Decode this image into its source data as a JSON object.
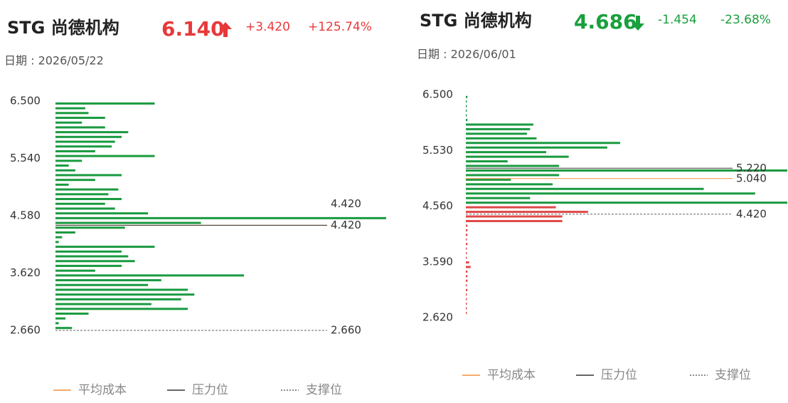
{
  "chart_data": [
    {
      "type": "bar",
      "orientation": "horizontal",
      "title": "STG 尚德机构",
      "price": "6.140",
      "direction": "up",
      "change": "+3.420",
      "change_pct": "+125.74%",
      "price_color": "#e8393a",
      "change_color": "#e8393a",
      "date": "日期 : 2026/05/22",
      "ylim": [
        2.66,
        6.5
      ],
      "yticks": [
        {
          "value": 6.5,
          "label": "6.500"
        },
        {
          "value": 5.54,
          "label": "5.540"
        },
        {
          "value": 4.58,
          "label": "4.580"
        },
        {
          "value": 3.62,
          "label": "3.620"
        },
        {
          "value": 2.66,
          "label": "2.660"
        }
      ],
      "xlim": [
        0,
        100
      ],
      "color": "#1a9a40",
      "y": [
        6.46,
        6.38,
        6.3,
        6.22,
        6.14,
        6.06,
        5.98,
        5.9,
        5.82,
        5.74,
        5.66,
        5.58,
        5.5,
        5.42,
        5.34,
        5.26,
        5.18,
        5.1,
        5.02,
        4.94,
        4.86,
        4.78,
        4.7,
        4.62,
        4.54,
        4.46,
        4.38,
        4.3,
        4.22,
        4.14,
        4.06,
        3.98,
        3.9,
        3.82,
        3.74,
        3.66,
        3.58,
        3.5,
        3.42,
        3.34,
        3.26,
        3.18,
        3.1,
        3.02,
        2.94,
        2.86,
        2.78,
        2.7
      ],
      "values": [
        30,
        9,
        10,
        15,
        8,
        15,
        22,
        20,
        18,
        17,
        12,
        30,
        8,
        4,
        6,
        20,
        12,
        4,
        19,
        16,
        20,
        15,
        18,
        28,
        100,
        44,
        21,
        6,
        2,
        1,
        30,
        20,
        22,
        24,
        20,
        12,
        57,
        32,
        28,
        40,
        42,
        38,
        29,
        40,
        10,
        3,
        1,
        5
      ],
      "avg_cost": {
        "value": 4.42,
        "label": "4.420"
      },
      "pressure": {
        "value": 4.42,
        "label": "4.420"
      },
      "support": {
        "value": 2.66,
        "label": "2.660"
      },
      "avg_color": "#f0913c",
      "pressure_color": "#333333",
      "support_color": "#666666",
      "legend": [
        "平均成本",
        "压力位",
        "支撑位"
      ]
    },
    {
      "type": "bar",
      "orientation": "horizontal",
      "title": "STG 尚德机构",
      "price": "4.686",
      "direction": "down",
      "change": "-1.454",
      "change_pct": "-23.68%",
      "price_color": "#18a03c",
      "change_color": "#18a03c",
      "date": "日期 : 2026/06/01",
      "ylim": [
        2.62,
        6.5
      ],
      "yticks": [
        {
          "value": 6.5,
          "label": "6.500"
        },
        {
          "value": 5.53,
          "label": "5.530"
        },
        {
          "value": 4.56,
          "label": "4.560"
        },
        {
          "value": 3.59,
          "label": "3.590"
        },
        {
          "value": 2.62,
          "label": "2.620"
        }
      ],
      "xlim": [
        0,
        100
      ],
      "y": [
        6.46,
        6.38,
        6.3,
        6.22,
        6.14,
        6.06,
        5.98,
        5.9,
        5.82,
        5.74,
        5.66,
        5.58,
        5.5,
        5.42,
        5.34,
        5.26,
        5.18,
        5.1,
        5.02,
        4.94,
        4.86,
        4.78,
        4.7,
        4.62,
        4.54,
        4.46,
        4.38,
        4.3,
        4.22,
        4.14,
        4.06,
        3.98,
        3.9,
        3.82,
        3.74,
        3.66,
        3.58,
        3.5,
        3.42,
        3.34,
        3.26,
        3.18,
        3.1,
        3.02,
        2.94,
        2.86,
        2.78,
        2.7
      ],
      "values": [
        0.5,
        0.3,
        0.3,
        0.3,
        0.3,
        0.5,
        21,
        20,
        19,
        22,
        48,
        44,
        25,
        32,
        13,
        29,
        100,
        29,
        14,
        27,
        74,
        90,
        20,
        100,
        28,
        38,
        30,
        30,
        0.5,
        0.5,
        0.5,
        0.3,
        0.5,
        0.3,
        0.3,
        0.3,
        1,
        1.5,
        0.5,
        0.5,
        0.5,
        0.3,
        0.5,
        0.3,
        0.3,
        0.3,
        0.3,
        0.3
      ],
      "colors": [
        "#1a9a40",
        "#1a9a40",
        "#1a9a40",
        "#1a9a40",
        "#1a9a40",
        "#1a9a40",
        "#1a9a40",
        "#1a9a40",
        "#1a9a40",
        "#1a9a40",
        "#1a9a40",
        "#1a9a40",
        "#1a9a40",
        "#1a9a40",
        "#1a9a40",
        "#1a9a40",
        "#1a9a40",
        "#1a9a40",
        "#1a9a40",
        "#1a9a40",
        "#1a9a40",
        "#1a9a40",
        "#1a9a40",
        "#1a9a40",
        "#e04848",
        "#e04848",
        "#e04848",
        "#e04848",
        "#e04848",
        "#e04848",
        "#e04848",
        "#e04848",
        "#e04848",
        "#e04848",
        "#e04848",
        "#e04848",
        "#e04848",
        "#e04848",
        "#e04848",
        "#e04848",
        "#e04848",
        "#e04848",
        "#e04848",
        "#e04848",
        "#e04848",
        "#e04848",
        "#e04848",
        "#e04848"
      ],
      "avg_cost": {
        "value": 5.04,
        "label": "5.040"
      },
      "pressure": {
        "value": 5.22,
        "label": "5.220"
      },
      "support": {
        "value": 4.42,
        "label": "4.420"
      },
      "avg_color": "#f0913c",
      "pressure_color": "#333333",
      "support_color": "#666666",
      "legend": [
        "平均成本",
        "压力位",
        "支撑位"
      ]
    }
  ]
}
